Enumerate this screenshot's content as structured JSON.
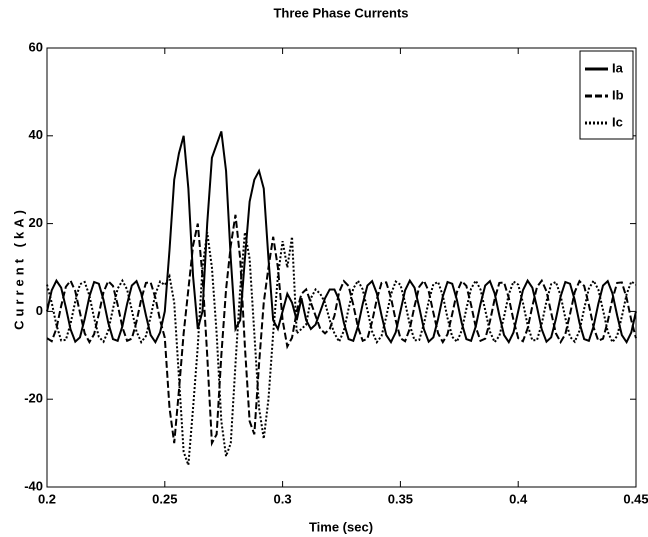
{
  "chart_data": {
    "type": "line",
    "title": "Three Phase Currents",
    "xlabel": "Time (sec)",
    "ylabel": "Current (kA)",
    "xlim": [
      0.2,
      0.45
    ],
    "ylim": [
      -40,
      60
    ],
    "xticks": [
      0.2,
      0.25,
      0.3,
      0.35,
      0.4,
      0.45
    ],
    "yticks": [
      -40,
      -20,
      0,
      20,
      40,
      60
    ],
    "legend": "upper right",
    "x": [
      0.2,
      0.202,
      0.204,
      0.206,
      0.208,
      0.21,
      0.212,
      0.214,
      0.216,
      0.218,
      0.22,
      0.222,
      0.224,
      0.226,
      0.228,
      0.23,
      0.232,
      0.234,
      0.236,
      0.238,
      0.24,
      0.242,
      0.244,
      0.246,
      0.248,
      0.25,
      0.252,
      0.254,
      0.256,
      0.258,
      0.26,
      0.262,
      0.264,
      0.266,
      0.268,
      0.27,
      0.272,
      0.274,
      0.276,
      0.278,
      0.28,
      0.282,
      0.284,
      0.286,
      0.288,
      0.29,
      0.292,
      0.294,
      0.296,
      0.298,
      0.3,
      0.302,
      0.304,
      0.306,
      0.308,
      0.31,
      0.312,
      0.314,
      0.316,
      0.318,
      0.32,
      0.322,
      0.324,
      0.326,
      0.328,
      0.33,
      0.332,
      0.334,
      0.336,
      0.338,
      0.34,
      0.342,
      0.344,
      0.346,
      0.348,
      0.35,
      0.352,
      0.354,
      0.356,
      0.358,
      0.36,
      0.362,
      0.364,
      0.366,
      0.368,
      0.37,
      0.372,
      0.374,
      0.376,
      0.378,
      0.38,
      0.382,
      0.384,
      0.386,
      0.388,
      0.39,
      0.392,
      0.394,
      0.396,
      0.398,
      0.4,
      0.402,
      0.404,
      0.406,
      0.408,
      0.41,
      0.412,
      0.414,
      0.416,
      0.418,
      0.42,
      0.422,
      0.424,
      0.426,
      0.428,
      0.43,
      0.432,
      0.434,
      0.436,
      0.438,
      0.44,
      0.442,
      0.444,
      0.446,
      0.448,
      0.45
    ],
    "series": [
      {
        "name": "Ia",
        "color": "#000000",
        "style": "solid",
        "values": [
          0,
          4.8,
          7,
          5.4,
          0.9,
          -4.1,
          -6.9,
          -5.9,
          -1.7,
          3.4,
          6.7,
          6.3,
          2.6,
          -2.6,
          -6.3,
          -6.7,
          -3.4,
          1.7,
          5.9,
          6.9,
          4.1,
          -0.9,
          -5.4,
          -7,
          -4.8,
          0,
          14,
          30,
          36,
          40,
          28,
          8,
          -4,
          0,
          20,
          35,
          38,
          41,
          32,
          12,
          -4,
          -2,
          12,
          25,
          30,
          32,
          28,
          12,
          -2,
          -4,
          0,
          4,
          2,
          -2,
          3,
          -2,
          -4,
          -3,
          0,
          3,
          5,
          5,
          2.6,
          -2.6,
          -6.3,
          -6.7,
          -3.4,
          1.7,
          5.9,
          6.9,
          4.1,
          -0.9,
          -5.4,
          -7,
          -4.8,
          0,
          4.8,
          7,
          5.4,
          0.9,
          -4.1,
          -6.9,
          -5.9,
          -1.7,
          3.4,
          6.7,
          6.3,
          2.6,
          -2.6,
          -6.3,
          -6.7,
          -3.4,
          1.7,
          5.9,
          6.9,
          4.1,
          -0.9,
          -5.4,
          -7,
          -4.8,
          0,
          4.8,
          7,
          5.4,
          0.9,
          -4.1,
          -6.9,
          -5.9,
          -1.7,
          3.4,
          6.7,
          6.3,
          2.6,
          -2.6,
          -6.3,
          -6.7,
          -3.4,
          1.7,
          5.9,
          6.9,
          4.1,
          -0.9,
          -5.4,
          -7,
          -4.8,
          0
        ]
      },
      {
        "name": "Ib",
        "color": "#000000",
        "style": "dashed",
        "values": [
          -6.1,
          -6.8,
          -3.9,
          1.2,
          5.6,
          7.0,
          4.6,
          -0.3,
          -5.0,
          -7.0,
          -5.2,
          -0.6,
          4.4,
          6.9,
          5.8,
          1.5,
          -3.6,
          -6.7,
          -6.2,
          -2.3,
          2.8,
          6.5,
          6.6,
          3.1,
          -2.0,
          -6,
          -22,
          -30,
          -18,
          -5,
          5,
          15,
          20,
          8,
          -10,
          -30,
          -28,
          -10,
          5,
          15,
          22,
          12,
          -8,
          -25,
          -28,
          -12,
          2,
          10,
          17,
          10,
          -2,
          -8,
          -6,
          0,
          4,
          5,
          2,
          -1,
          -4,
          -5,
          -4,
          -1,
          4.4,
          6.9,
          5.8,
          1.5,
          -3.6,
          -6.7,
          -6.2,
          -2.3,
          2.8,
          6.5,
          6.6,
          3.1,
          -2.0,
          -6.1,
          -6.8,
          -3.9,
          1.2,
          5.6,
          7.0,
          4.6,
          -0.3,
          -5.0,
          -7.0,
          -5.2,
          -0.6,
          4.4,
          6.9,
          5.8,
          1.5,
          -3.6,
          -6.7,
          -6.2,
          -2.3,
          2.8,
          6.5,
          6.6,
          3.1,
          -2.0,
          -6.1,
          -6.8,
          -3.9,
          1.2,
          5.6,
          7.0,
          4.6,
          -0.3,
          -5.0,
          -7.0,
          -5.2,
          -0.6,
          4.4,
          6.9,
          5.8,
          1.5,
          -3.6,
          -6.7,
          -6.2,
          -2.3,
          2.8,
          6.5,
          6.6,
          3.1,
          -2.0,
          -6.1
        ]
      },
      {
        "name": "Ic",
        "color": "#000000",
        "style": "dotted",
        "values": [
          6.1,
          2.0,
          -3.1,
          -6.6,
          -6.5,
          -2.8,
          2.3,
          6.2,
          6.7,
          3.6,
          -1.5,
          -5.8,
          -6.9,
          -4.4,
          0.6,
          5.2,
          7.0,
          5.0,
          0.3,
          -4.6,
          -7.0,
          -5.6,
          -1.2,
          3.9,
          6.8,
          6,
          8,
          2,
          -15,
          -32,
          -35,
          -22,
          -8,
          10,
          18,
          10,
          -5,
          -25,
          -33,
          -30,
          -12,
          5,
          18,
          12,
          -5,
          -22,
          -29,
          -20,
          -5,
          8,
          16,
          10,
          17,
          -5,
          -4,
          -3,
          3,
          5,
          4,
          2,
          -2,
          -5,
          -6.9,
          -4.4,
          0.6,
          5.2,
          7.0,
          5.0,
          0.3,
          -4.6,
          -7.0,
          -5.6,
          -1.2,
          3.9,
          6.8,
          6.1,
          2.0,
          -3.1,
          -6.6,
          -6.5,
          -2.8,
          2.3,
          6.2,
          6.7,
          3.6,
          -1.5,
          -5.8,
          -6.9,
          -4.4,
          0.6,
          5.2,
          7.0,
          5.0,
          0.3,
          -4.6,
          -7.0,
          -5.6,
          -1.2,
          3.9,
          6.8,
          6.1,
          2.0,
          -3.1,
          -6.6,
          -6.5,
          -2.8,
          2.3,
          6.2,
          6.7,
          3.6,
          -1.5,
          -5.8,
          -6.9,
          -4.4,
          0.6,
          5.2,
          7.0,
          5.0,
          0.3,
          -4.6,
          -7.0,
          -5.6,
          -1.2,
          3.9,
          6.8,
          6.1
        ]
      }
    ]
  }
}
